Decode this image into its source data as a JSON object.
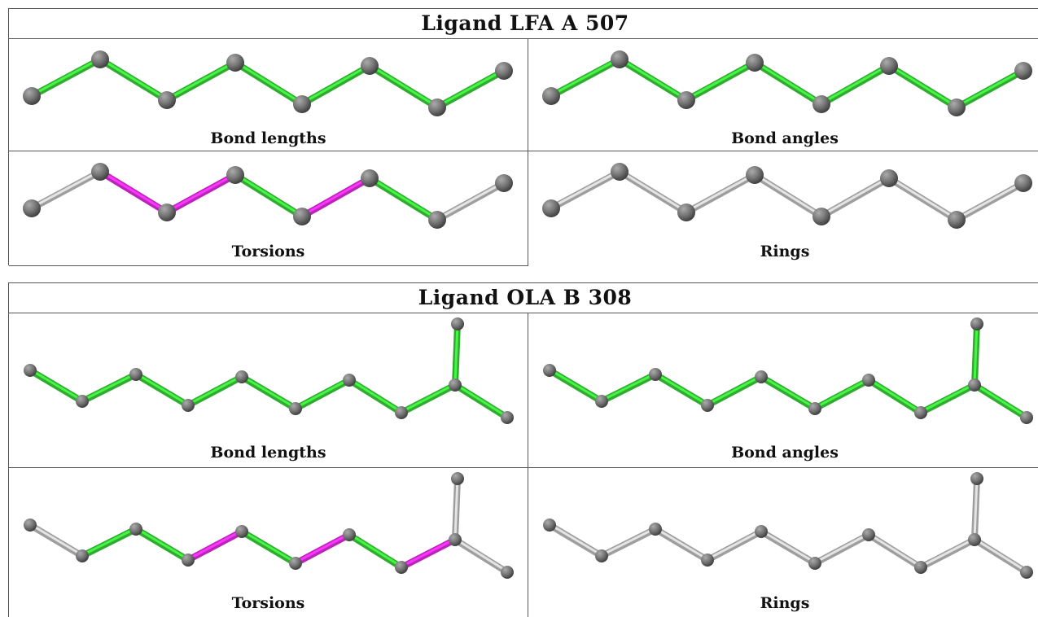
{
  "colors": {
    "ok": "#3cd63c",
    "warn": "#e62ee6",
    "none": "#c6c6c6",
    "atom": "#767676",
    "border": "#555555"
  },
  "ligands": [
    {
      "title": "Ligand LFA A 507",
      "panels": [
        {
          "caption": "Bond lengths",
          "bonds": [
            "ok",
            "ok",
            "ok",
            "ok",
            "ok",
            "ok",
            "ok"
          ]
        },
        {
          "caption": "Bond angles",
          "bonds": [
            "ok",
            "ok",
            "ok",
            "ok",
            "ok",
            "ok",
            "ok"
          ]
        },
        {
          "caption": "Torsions",
          "bonds": [
            "none",
            "warn",
            "warn",
            "ok",
            "warn",
            "ok",
            "none"
          ]
        },
        {
          "caption": "Rings",
          "bonds": [
            "none",
            "none",
            "none",
            "none",
            "none",
            "none",
            "none"
          ]
        }
      ]
    },
    {
      "title": "Ligand OLA B 308",
      "panels": [
        {
          "caption": "Bond lengths",
          "bonds": [
            "ok",
            "ok",
            "ok",
            "ok",
            "ok",
            "ok",
            "ok",
            "ok",
            "ok",
            "ok"
          ]
        },
        {
          "caption": "Bond angles",
          "bonds": [
            "ok",
            "ok",
            "ok",
            "ok",
            "ok",
            "ok",
            "ok",
            "ok",
            "ok",
            "ok"
          ]
        },
        {
          "caption": "Torsions",
          "bonds": [
            "none",
            "ok",
            "ok",
            "warn",
            "ok",
            "warn",
            "ok",
            "warn",
            "none",
            "none"
          ]
        },
        {
          "caption": "Rings",
          "bonds": [
            "none",
            "none",
            "none",
            "none",
            "none",
            "none",
            "none",
            "none",
            "none",
            "none"
          ]
        }
      ]
    }
  ]
}
